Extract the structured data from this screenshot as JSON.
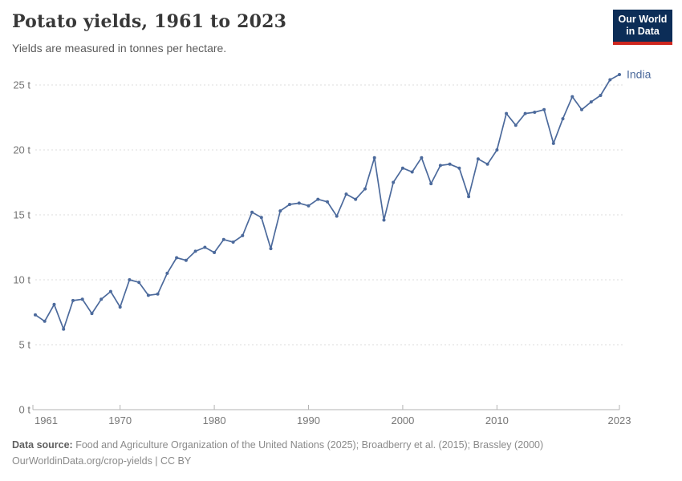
{
  "header": {
    "title": "Potato yields, 1961 to 2023",
    "subtitle": "Yields are measured in tonnes per hectare."
  },
  "logo": {
    "line1": "Our World",
    "line2": "in Data",
    "bg_color": "#0C2D57",
    "accent_color": "#CE261E"
  },
  "chart_data": {
    "type": "line",
    "title": "Potato yields, 1961 to 2023",
    "unit": "t",
    "xlim": [
      1961,
      2023
    ],
    "ylim": [
      0,
      25
    ],
    "grid": "horizontal-dashed",
    "legend_position": "end-of-line-label",
    "x_ticks": [
      1961,
      1970,
      1980,
      1990,
      2000,
      2010,
      2023
    ],
    "y_ticks": [
      0,
      5,
      10,
      15,
      20,
      25
    ],
    "y_tick_suffix": " t",
    "series": [
      {
        "name": "India",
        "color": "#4C6A9C",
        "years": [
          1961,
          1962,
          1963,
          1964,
          1965,
          1966,
          1967,
          1968,
          1969,
          1970,
          1971,
          1972,
          1973,
          1974,
          1975,
          1976,
          1977,
          1978,
          1979,
          1980,
          1981,
          1982,
          1983,
          1984,
          1985,
          1986,
          1987,
          1988,
          1989,
          1990,
          1991,
          1992,
          1993,
          1994,
          1995,
          1996,
          1997,
          1998,
          1999,
          2000,
          2001,
          2002,
          2003,
          2004,
          2005,
          2006,
          2007,
          2008,
          2009,
          2010,
          2011,
          2012,
          2013,
          2014,
          2015,
          2016,
          2017,
          2018,
          2019,
          2020,
          2021,
          2022,
          2023
        ],
        "values": [
          7.3,
          6.8,
          8.1,
          6.2,
          8.4,
          8.5,
          7.4,
          8.5,
          9.1,
          7.9,
          10.0,
          9.8,
          8.8,
          8.9,
          10.5,
          11.7,
          11.5,
          12.2,
          12.5,
          12.1,
          13.1,
          12.9,
          13.4,
          15.2,
          14.8,
          12.4,
          15.3,
          15.8,
          15.9,
          15.7,
          16.2,
          16.0,
          14.9,
          16.6,
          16.2,
          17.0,
          19.4,
          14.6,
          17.5,
          18.6,
          18.3,
          19.4,
          17.4,
          18.8,
          18.9,
          18.6,
          16.4,
          19.3,
          18.9,
          20.0,
          22.8,
          21.9,
          22.8,
          22.9,
          23.1,
          20.5,
          22.4,
          24.1,
          23.1,
          23.7,
          24.2,
          25.4,
          25.8
        ]
      }
    ],
    "colors": {
      "gridline": "#DDDDDD",
      "axis": "#B3B3B3",
      "tick_label": "#767676"
    }
  },
  "footer": {
    "datasource_label": "Data source:",
    "datasource_text": " Food and Agriculture Organization of the United Nations (2025); Broadberry et al. (2015); Brassley (2000)",
    "line2": "OurWorldinData.org/crop-yields | CC BY"
  }
}
